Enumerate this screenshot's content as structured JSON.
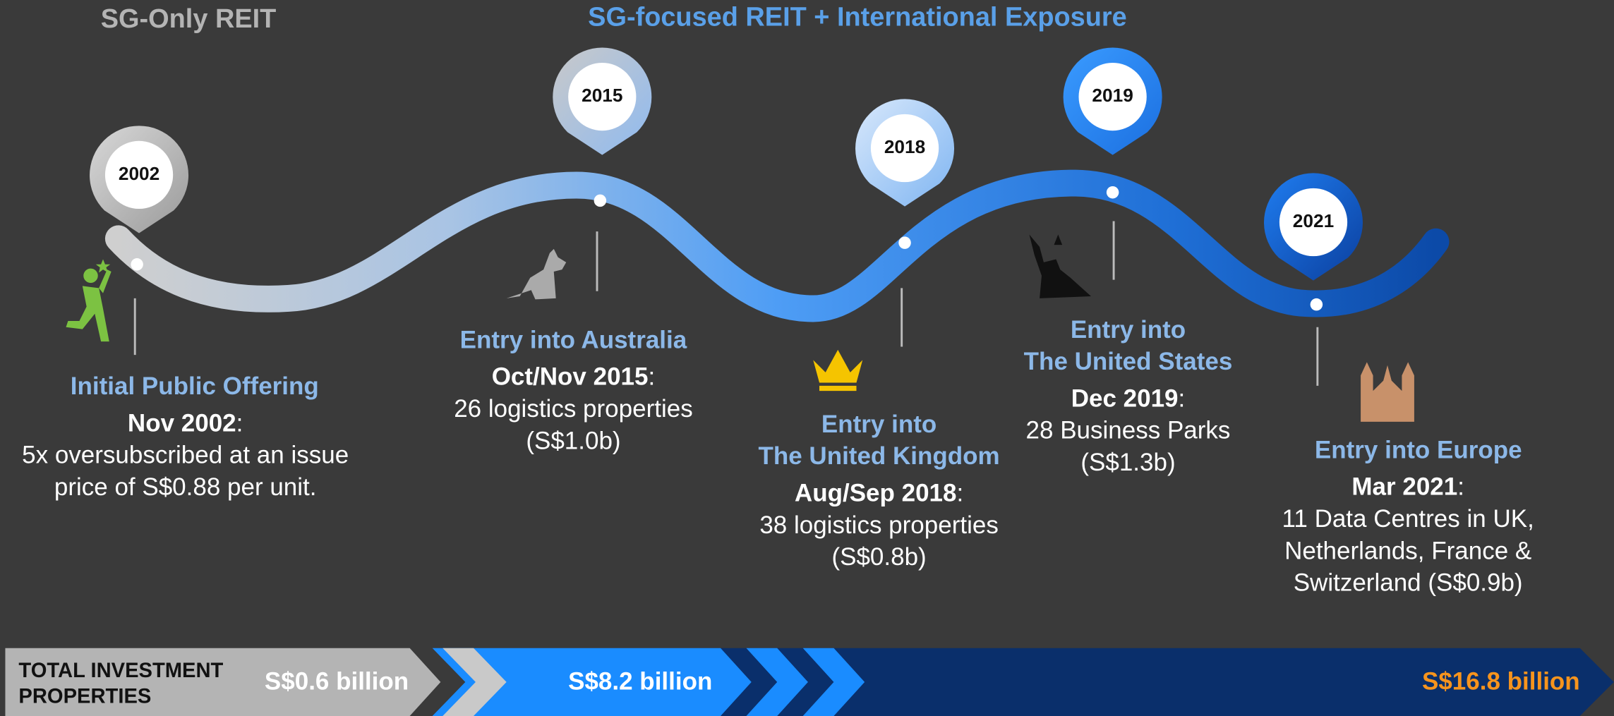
{
  "header": {
    "left": "SG-Only REIT",
    "right": "SG-focused REIT + International Exposure"
  },
  "milestones": [
    {
      "year": "2002",
      "title": [
        "Initial Public Offering"
      ],
      "date": "Nov 2002",
      "punct": ":",
      "lines": [
        "5x oversubscribed at an issue",
        "price of S$0.88 per unit."
      ]
    },
    {
      "year": "2015",
      "title": [
        "Entry into Australia"
      ],
      "date": "Oct/Nov 2015",
      "punct": ":",
      "lines": [
        "26 logistics properties",
        "(S$1.0b)"
      ]
    },
    {
      "year": "2018",
      "title": [
        "Entry into",
        "The United Kingdom"
      ],
      "date": "Aug/Sep 2018",
      "punct": ":",
      "lines": [
        "38 logistics properties",
        "(S$0.8b)"
      ]
    },
    {
      "year": "2019",
      "title": [
        "Entry into",
        "The United States"
      ],
      "date": "Dec 2019",
      "punct": ":",
      "lines": [
        "28 Business Parks",
        "(S$1.3b)"
      ]
    },
    {
      "year": "2021",
      "title": [
        "Entry into Europe"
      ],
      "date": "Mar 2021",
      "punct": ":",
      "lines": [
        "11 Data Centres in UK,",
        "Netherlands, France &",
        "Switzerland (S$0.9b)"
      ]
    }
  ],
  "footer": {
    "label": [
      "TOTAL INVESTMENT",
      "PROPERTIES"
    ],
    "stages": [
      "S$0.6 billion",
      "S$8.2 billion",
      "S$16.8 billion"
    ]
  }
}
